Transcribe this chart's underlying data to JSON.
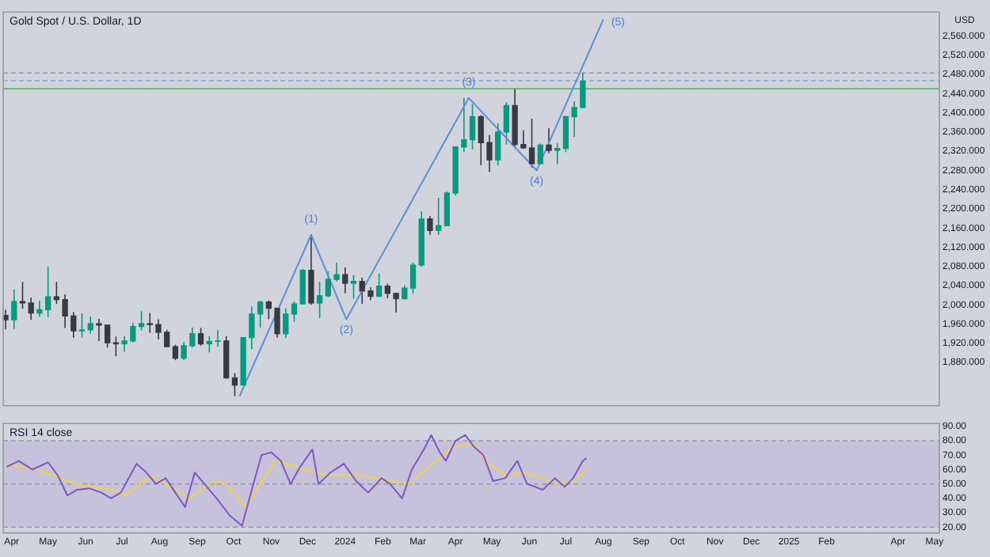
{
  "chart_data": [
    {
      "type": "candlestick",
      "title": "Gold Spot / U.S. Dollar, 1D",
      "ylabel": "USD",
      "tick_labels": "y",
      "xlim": [
        "2023-03-25",
        "2025-05-05"
      ],
      "ylim": [
        1790,
        2610
      ],
      "yticks": [
        {
          "value": 1880,
          "label": "1,880.000"
        },
        {
          "value": 1920,
          "label": "1,920.000"
        },
        {
          "value": 1960,
          "label": "1,960.000"
        },
        {
          "value": 2000,
          "label": "2,000.000"
        },
        {
          "value": 2040,
          "label": "2,040.000"
        },
        {
          "value": 2080,
          "label": "2,080.000"
        },
        {
          "value": 2120,
          "label": "2,120.000"
        },
        {
          "value": 2160,
          "label": "2,160.000"
        },
        {
          "value": 2200,
          "label": "2,200.000"
        },
        {
          "value": 2240,
          "label": "2,240.000"
        },
        {
          "value": 2280,
          "label": "2,280.000"
        },
        {
          "value": 2320,
          "label": "2,320.000"
        },
        {
          "value": 2360,
          "label": "2,360.000"
        },
        {
          "value": 2400,
          "label": "2,400.000"
        },
        {
          "value": 2440,
          "label": "2,440.000"
        },
        {
          "value": 2480,
          "label": "2,480.000"
        },
        {
          "value": 2520,
          "label": "2,520.000"
        },
        {
          "value": 2560,
          "label": "2,560.000"
        }
      ],
      "x": [
        "2023-03-27",
        "2023-04-03",
        "2023-04-10",
        "2023-04-17",
        "2023-04-24",
        "2023-05-01",
        "2023-05-08",
        "2023-05-15",
        "2023-05-22",
        "2023-05-29",
        "2023-06-05",
        "2023-06-12",
        "2023-06-19",
        "2023-06-26",
        "2023-07-03",
        "2023-07-10",
        "2023-07-17",
        "2023-07-24",
        "2023-07-31",
        "2023-08-07",
        "2023-08-14",
        "2023-08-21",
        "2023-08-28",
        "2023-09-04",
        "2023-09-11",
        "2023-09-18",
        "2023-09-25",
        "2023-10-02",
        "2023-10-09",
        "2023-10-16",
        "2023-10-23",
        "2023-10-30",
        "2023-11-06",
        "2023-11-13",
        "2023-11-20",
        "2023-11-27",
        "2023-12-04",
        "2023-12-11",
        "2023-12-18",
        "2023-12-25",
        "2024-01-01",
        "2024-01-08",
        "2024-01-15",
        "2024-01-22",
        "2024-01-29",
        "2024-02-05",
        "2024-02-12",
        "2024-02-19",
        "2024-02-26",
        "2024-03-04",
        "2024-03-11",
        "2024-03-18",
        "2024-03-25",
        "2024-04-01",
        "2024-04-08",
        "2024-04-15",
        "2024-04-22",
        "2024-04-29",
        "2024-05-06",
        "2024-05-13",
        "2024-05-20",
        "2024-05-27",
        "2024-06-03",
        "2024-06-10",
        "2024-06-17",
        "2024-06-24",
        "2024-07-01",
        "2024-07-08",
        "2024-07-15"
      ],
      "ohlc": [
        [
          1978,
          1990,
          1949,
          1969
        ],
        [
          1969,
          2032,
          1950,
          2007
        ],
        [
          2007,
          2048,
          1992,
          2004
        ],
        [
          2004,
          2015,
          1969,
          1983
        ],
        [
          1983,
          2009,
          1975,
          1990
        ],
        [
          1990,
          2079,
          1975,
          2017
        ],
        [
          2017,
          2048,
          2002,
          2011
        ],
        [
          2011,
          2022,
          1952,
          1977
        ],
        [
          1977,
          1985,
          1932,
          1946
        ],
        [
          1946,
          1983,
          1932,
          1948
        ],
        [
          1948,
          1976,
          1940,
          1961
        ],
        [
          1961,
          1971,
          1925,
          1958
        ],
        [
          1958,
          1959,
          1911,
          1921
        ],
        [
          1921,
          1934,
          1893,
          1919
        ],
        [
          1919,
          1935,
          1902,
          1925
        ],
        [
          1925,
          1963,
          1922,
          1955
        ],
        [
          1955,
          1987,
          1947,
          1961
        ],
        [
          1961,
          1983,
          1942,
          1959
        ],
        [
          1959,
          1970,
          1928,
          1943
        ],
        [
          1943,
          1948,
          1912,
          1913
        ],
        [
          1913,
          1917,
          1885,
          1889
        ],
        [
          1889,
          1923,
          1885,
          1915
        ],
        [
          1915,
          1953,
          1911,
          1940
        ],
        [
          1940,
          1952,
          1915,
          1919
        ],
        [
          1919,
          1935,
          1901,
          1924
        ],
        [
          1924,
          1947,
          1913,
          1925
        ],
        [
          1925,
          1935,
          1846,
          1848
        ],
        [
          1848,
          1858,
          1810,
          1833
        ],
        [
          1833,
          1933,
          1833,
          1932
        ],
        [
          1932,
          1997,
          1908,
          1981
        ],
        [
          1981,
          2009,
          1953,
          2006
        ],
        [
          2006,
          2009,
          1970,
          1993
        ],
        [
          1993,
          1993,
          1932,
          1940
        ],
        [
          1940,
          1993,
          1931,
          1981
        ],
        [
          1981,
          2007,
          1965,
          2002
        ],
        [
          2002,
          2075,
          2001,
          2072
        ],
        [
          2072,
          2146,
          2000,
          2004
        ],
        [
          2004,
          2048,
          1973,
          2019
        ],
        [
          2019,
          2070,
          2016,
          2053
        ],
        [
          2053,
          2088,
          2049,
          2063
        ],
        [
          2063,
          2078,
          2024,
          2045
        ],
        [
          2045,
          2062,
          2013,
          2049
        ],
        [
          2049,
          2057,
          2002,
          2029
        ],
        [
          2029,
          2037,
          2010,
          2018
        ],
        [
          2018,
          2065,
          2016,
          2039
        ],
        [
          2039,
          2044,
          2014,
          2024
        ],
        [
          2024,
          2025,
          1984,
          2013
        ],
        [
          2013,
          2041,
          2011,
          2035
        ],
        [
          2035,
          2088,
          2024,
          2083
        ],
        [
          2083,
          2195,
          2079,
          2179
        ],
        [
          2179,
          2185,
          2146,
          2155
        ],
        [
          2155,
          2223,
          2146,
          2165
        ],
        [
          2165,
          2236,
          2164,
          2233
        ],
        [
          2233,
          2330,
          2228,
          2329
        ],
        [
          2329,
          2431,
          2319,
          2344
        ],
        [
          2344,
          2418,
          2324,
          2392
        ],
        [
          2392,
          2395,
          2291,
          2338
        ],
        [
          2338,
          2354,
          2277,
          2302
        ],
        [
          2302,
          2378,
          2291,
          2360
        ],
        [
          2360,
          2422,
          2334,
          2415
        ],
        [
          2415,
          2450,
          2326,
          2334
        ],
        [
          2334,
          2364,
          2325,
          2327
        ],
        [
          2327,
          2388,
          2286,
          2294
        ],
        [
          2294,
          2336,
          2293,
          2333
        ],
        [
          2333,
          2368,
          2316,
          2322
        ],
        [
          2322,
          2337,
          2293,
          2326
        ],
        [
          2326,
          2393,
          2318,
          2392
        ],
        [
          2392,
          2424,
          2350,
          2411
        ],
        [
          2411,
          2483,
          2410,
          2466
        ]
      ],
      "colors": [
        "#363a45",
        "#089981",
        "#363a45",
        "#363a45",
        "#089981",
        "#089981",
        "#363a45",
        "#363a45",
        "#363a45",
        "#089981",
        "#089981",
        "#363a45",
        "#363a45",
        "#363a45",
        "#089981",
        "#089981",
        "#089981",
        "#363a45",
        "#363a45",
        "#363a45",
        "#363a45",
        "#089981",
        "#089981",
        "#363a45",
        "#089981",
        "#089981",
        "#363a45",
        "#363a45",
        "#089981",
        "#089981",
        "#089981",
        "#363a45",
        "#363a45",
        "#089981",
        "#089981",
        "#089981",
        "#363a45",
        "#089981",
        "#089981",
        "#089981",
        "#363a45",
        "#089981",
        "#363a45",
        "#363a45",
        "#089981",
        "#363a45",
        "#363a45",
        "#089981",
        "#089981",
        "#089981",
        "#363a45",
        "#089981",
        "#089981",
        "#089981",
        "#089981",
        "#089981",
        "#363a45",
        "#363a45",
        "#089981",
        "#089981",
        "#363a45",
        "#363a45",
        "#363a45",
        "#089981",
        "#363a45",
        "#089981",
        "#089981",
        "#089981",
        "#089981"
      ],
      "series": [
        {
          "type": "line",
          "color": "#5b8fd6",
          "x": [
            "2023-10-06",
            "2023-12-04",
            "2024-01-02",
            "2024-04-12",
            "2024-06-07",
            "2024-08-01"
          ],
          "values": [
            1810,
            2146,
            1970,
            2431,
            2280,
            2595
          ]
        }
      ],
      "ref_lines": [
        {
          "axis": "y",
          "value": 2483,
          "color": "#9598a1",
          "line_style": "dashed"
        },
        {
          "axis": "y",
          "value": 2467,
          "color": "#7aa7e0",
          "line_style": "dashed"
        },
        {
          "axis": "y",
          "value": 2450,
          "color": "#4caf50"
        }
      ],
      "annotations": [
        {
          "text": "(1)",
          "x": "2023-12-04",
          "y": 2146
        },
        {
          "text": "(2)",
          "x": "2024-01-02",
          "y": 1970
        },
        {
          "text": "(3)",
          "x": "2024-04-12",
          "y": 2431
        },
        {
          "text": "(4)",
          "x": "2024-06-07",
          "y": 2280
        },
        {
          "text": "(5)",
          "x": "2024-08-01",
          "y": 2595
        }
      ]
    },
    {
      "type": "line",
      "title": "RSI 14 close",
      "xlim": [
        "2023-03-25",
        "2025-05-05"
      ],
      "xticks": [
        {
          "value": "2023-04-01",
          "label": "Apr"
        },
        {
          "value": "2023-05-01",
          "label": "May"
        },
        {
          "value": "2023-06-01",
          "label": "Jun"
        },
        {
          "value": "2023-07-01",
          "label": "Jul"
        },
        {
          "value": "2023-08-01",
          "label": "Aug"
        },
        {
          "value": "2023-09-01",
          "label": "Sep"
        },
        {
          "value": "2023-10-01",
          "label": "Oct"
        },
        {
          "value": "2023-11-01",
          "label": "Nov"
        },
        {
          "value": "2023-12-01",
          "label": "Dec"
        },
        {
          "value": "2024-01-01",
          "label": "2024"
        },
        {
          "value": "2024-02-01",
          "label": "Feb"
        },
        {
          "value": "2024-03-01",
          "label": "Mar"
        },
        {
          "value": "2024-04-01",
          "label": "Apr"
        },
        {
          "value": "2024-05-01",
          "label": "May"
        },
        {
          "value": "2024-06-01",
          "label": "Jun"
        },
        {
          "value": "2024-07-01",
          "label": "Jul"
        },
        {
          "value": "2024-08-01",
          "label": "Aug"
        },
        {
          "value": "2024-09-01",
          "label": "Sep"
        },
        {
          "value": "2024-10-01",
          "label": "Oct"
        },
        {
          "value": "2024-11-01",
          "label": "Nov"
        },
        {
          "value": "2024-12-01",
          "label": "Dec"
        },
        {
          "value": "2025-01-01",
          "label": "2025"
        },
        {
          "value": "2025-02-01",
          "label": "Feb"
        },
        {
          "value": "2025-04-01",
          "label": "Apr"
        },
        {
          "value": "2025-05-01",
          "label": "May"
        }
      ],
      "ylim": [
        16,
        92
      ],
      "yticks": [
        {
          "value": 20,
          "label": "20.00"
        },
        {
          "value": 30,
          "label": "30.00"
        },
        {
          "value": 40,
          "label": "40.00"
        },
        {
          "value": 50,
          "label": "50.00"
        },
        {
          "value": 60,
          "label": "60.00"
        },
        {
          "value": 70,
          "label": "70.00"
        },
        {
          "value": 80,
          "label": "80.00"
        },
        {
          "value": 90,
          "label": "90.00"
        }
      ],
      "bands": [
        {
          "axis": "y",
          "from": 20,
          "to": 80,
          "color": "#c6c2dc"
        }
      ],
      "ref_lines": [
        {
          "axis": "y",
          "value": 80,
          "color": "#9598a1",
          "line_style": "dashed"
        },
        {
          "axis": "y",
          "value": 50,
          "color": "#9598a1",
          "line_style": "dashed"
        },
        {
          "axis": "y",
          "value": 20,
          "color": "#9598a1",
          "line_style": "dashed"
        }
      ],
      "series": [
        {
          "color": "#7e57c2",
          "x": [
            "2023-03-28",
            "2023-04-07",
            "2023-04-18",
            "2023-05-01",
            "2023-05-09",
            "2023-05-17",
            "2023-05-25",
            "2023-06-04",
            "2023-06-14",
            "2023-06-22",
            "2023-06-30",
            "2023-07-13",
            "2023-07-21",
            "2023-07-29",
            "2023-08-06",
            "2023-08-14",
            "2023-08-22",
            "2023-08-30",
            "2023-09-07",
            "2023-09-17",
            "2023-09-28",
            "2023-10-08",
            "2023-10-16",
            "2023-10-24",
            "2023-11-01",
            "2023-11-09",
            "2023-11-17",
            "2023-11-25",
            "2023-12-05",
            "2023-12-10",
            "2023-12-20",
            "2023-12-31",
            "2024-01-10",
            "2024-01-20",
            "2024-01-31",
            "2024-02-07",
            "2024-02-17",
            "2024-02-25",
            "2024-03-06",
            "2024-03-12",
            "2024-03-19",
            "2024-03-24",
            "2024-04-01",
            "2024-04-09",
            "2024-04-16",
            "2024-04-24",
            "2024-05-02",
            "2024-05-12",
            "2024-05-22",
            "2024-05-30",
            "2024-06-12",
            "2024-06-22",
            "2024-06-30",
            "2024-07-07",
            "2024-07-15",
            "2024-07-18"
          ],
          "values": [
            62,
            66,
            60,
            65,
            56,
            42,
            46,
            47,
            44,
            40,
            44,
            64,
            58,
            50,
            54,
            44,
            34,
            58,
            50,
            40,
            28,
            21,
            46,
            70,
            72,
            66,
            50,
            62,
            74,
            50,
            58,
            64,
            52,
            44,
            54,
            50,
            40,
            60,
            74,
            84,
            72,
            66,
            80,
            84,
            76,
            70,
            52,
            54,
            66,
            50,
            46,
            54,
            48,
            54,
            66,
            68
          ]
        },
        {
          "color": "#f2d24b",
          "x": [
            "2023-03-28",
            "2023-04-23",
            "2023-05-24",
            "2023-06-24",
            "2023-07-04",
            "2023-07-25",
            "2023-08-10",
            "2023-08-25",
            "2023-09-15",
            "2023-09-25",
            "2023-10-11",
            "2023-10-26",
            "2023-11-05",
            "2023-11-21",
            "2023-12-17",
            "2024-01-12",
            "2024-02-07",
            "2024-02-23",
            "2024-03-10",
            "2024-03-31",
            "2024-04-16",
            "2024-04-26",
            "2024-05-12",
            "2024-05-28",
            "2024-06-12",
            "2024-06-23",
            "2024-07-08",
            "2024-07-18"
          ],
          "values": [
            64,
            60,
            50,
            46,
            42,
            56,
            48,
            40,
            52,
            50,
            34,
            54,
            66,
            62,
            56,
            56,
            52,
            50,
            62,
            76,
            78,
            66,
            56,
            58,
            54,
            50,
            52,
            60
          ]
        }
      ]
    }
  ]
}
